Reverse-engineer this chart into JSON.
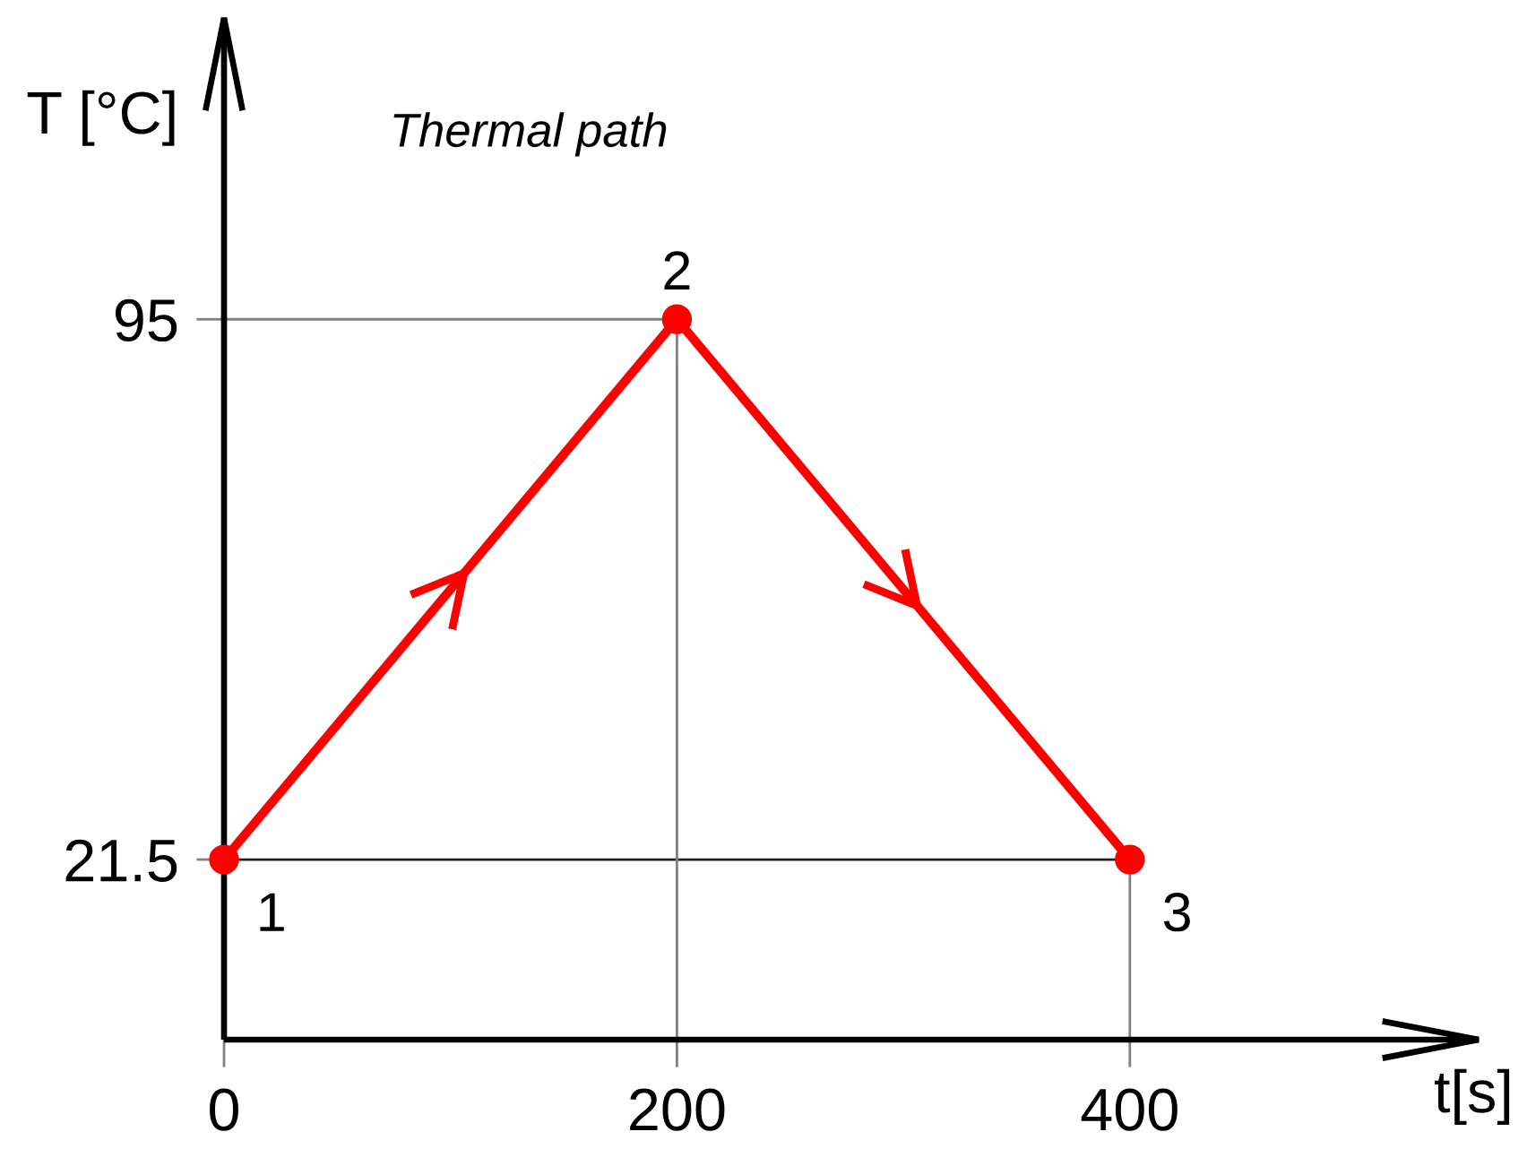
{
  "chart_data": {
    "type": "line",
    "title": "Thermal path",
    "xlabel": "t[s]",
    "ylabel": "T [°C]",
    "x": [
      0,
      200,
      400
    ],
    "series": [
      {
        "color": "#ff0000",
        "values": [
          21.5,
          95,
          21.5
        ]
      }
    ],
    "xlim": [
      0,
      554
    ],
    "ylim": [
      -3,
      136
    ],
    "xticks": [
      0,
      200,
      400
    ],
    "yticks": [
      21.5,
      95
    ],
    "marker": "circle",
    "line_style": "solid",
    "ref_lines": [
      {
        "axis": "y",
        "value": 95,
        "color": "#808080"
      },
      {
        "axis": "y",
        "value": 21.5,
        "color": "#202020"
      },
      {
        "axis": "x",
        "value": 200,
        "color": "#808080"
      },
      {
        "axis": "x",
        "value": 400,
        "color": "#808080"
      }
    ],
    "annotations": [
      {
        "text": "1",
        "x": 0,
        "y": 21.5
      },
      {
        "text": "2",
        "x": 200,
        "y": 95
      },
      {
        "text": "3",
        "x": 400,
        "y": 21.5
      }
    ]
  }
}
